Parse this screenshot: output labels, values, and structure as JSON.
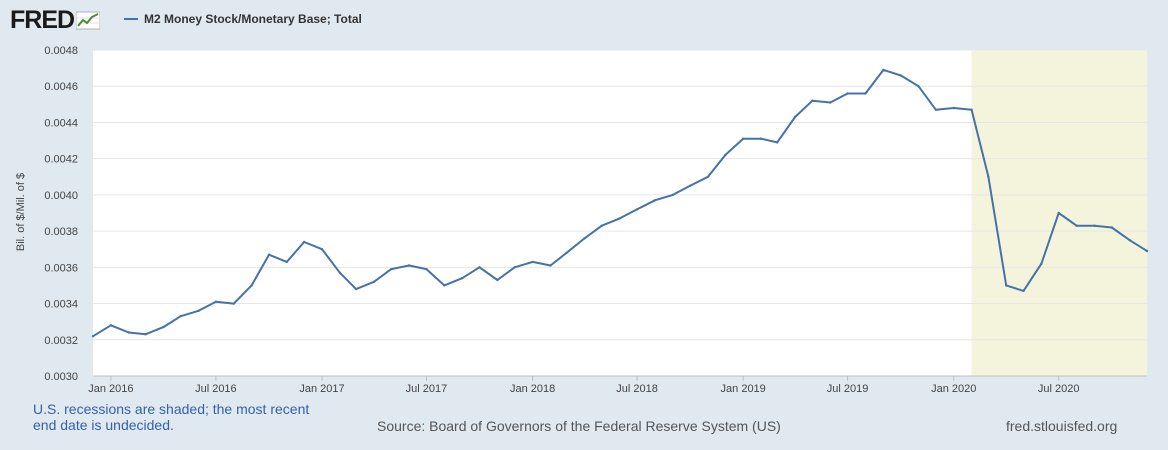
{
  "header": {
    "logo_text": "FRED",
    "logo_graph_icon": "chart-line-icon"
  },
  "legend": {
    "label": "M2 Money Stock/Monetary Base; Total"
  },
  "footer": {
    "recession_note": "U.S. recessions are shaded; the most recent end date is undecided.",
    "source": "Source: Board of Governors of the Federal Reserve System (US)",
    "site": "fred.stlouisfed.org"
  },
  "colors": {
    "line": "#4572a7",
    "recession_shade": "#f4f4dc",
    "background": "#e1e9f0",
    "plot_background": "#ffffff",
    "grid": "#e6e6e6"
  },
  "chart_data": {
    "type": "line",
    "title": "",
    "xlabel": "",
    "ylabel": "Bil. of $/Mil. of $",
    "x_range": [
      "2015-12-01",
      "2020-12-01"
    ],
    "ylim": [
      0.003,
      0.0048
    ],
    "y_ticks": [
      "0.0030",
      "0.0032",
      "0.0034",
      "0.0036",
      "0.0038",
      "0.0040",
      "0.0042",
      "0.0044",
      "0.0046",
      "0.0048"
    ],
    "x_ticks": [
      {
        "date": "2016-01-01",
        "label": "Jan 2016"
      },
      {
        "date": "2016-07-01",
        "label": "Jul 2016"
      },
      {
        "date": "2017-01-01",
        "label": "Jan 2017"
      },
      {
        "date": "2017-07-01",
        "label": "Jul 2017"
      },
      {
        "date": "2018-01-01",
        "label": "Jan 2018"
      },
      {
        "date": "2018-07-01",
        "label": "Jul 2018"
      },
      {
        "date": "2019-01-01",
        "label": "Jan 2019"
      },
      {
        "date": "2019-07-01",
        "label": "Jul 2019"
      },
      {
        "date": "2020-01-01",
        "label": "Jan 2020"
      },
      {
        "date": "2020-07-01",
        "label": "Jul 2020"
      }
    ],
    "grid": true,
    "legend_position": "top-left",
    "recession": {
      "start": "2020-02-01",
      "end": "2020-12-01"
    },
    "series": [
      {
        "name": "M2 Money Stock/Monetary Base; Total",
        "x": [
          "2015-12-01",
          "2016-01-01",
          "2016-02-01",
          "2016-03-01",
          "2016-04-01",
          "2016-05-01",
          "2016-06-01",
          "2016-07-01",
          "2016-08-01",
          "2016-09-01",
          "2016-10-01",
          "2016-11-01",
          "2016-12-01",
          "2017-01-01",
          "2017-02-01",
          "2017-03-01",
          "2017-04-01",
          "2017-05-01",
          "2017-06-01",
          "2017-07-01",
          "2017-08-01",
          "2017-09-01",
          "2017-10-01",
          "2017-11-01",
          "2017-12-01",
          "2018-01-01",
          "2018-02-01",
          "2018-03-01",
          "2018-04-01",
          "2018-05-01",
          "2018-06-01",
          "2018-07-01",
          "2018-08-01",
          "2018-09-01",
          "2018-10-01",
          "2018-11-01",
          "2018-12-01",
          "2019-01-01",
          "2019-02-01",
          "2019-03-01",
          "2019-04-01",
          "2019-05-01",
          "2019-06-01",
          "2019-07-01",
          "2019-08-01",
          "2019-09-01",
          "2019-10-01",
          "2019-11-01",
          "2019-12-01",
          "2020-01-01",
          "2020-02-01",
          "2020-03-01",
          "2020-04-01",
          "2020-05-01",
          "2020-06-01",
          "2020-07-01",
          "2020-08-01",
          "2020-09-01",
          "2020-10-01",
          "2020-11-01",
          "2020-12-01"
        ],
        "values": [
          0.00322,
          0.00328,
          0.00324,
          0.00323,
          0.00327,
          0.00333,
          0.00336,
          0.00341,
          0.0034,
          0.0035,
          0.00367,
          0.00363,
          0.00374,
          0.0037,
          0.00357,
          0.00348,
          0.00352,
          0.00359,
          0.00361,
          0.00359,
          0.0035,
          0.00354,
          0.0036,
          0.00353,
          0.0036,
          0.00363,
          0.00361,
          0.00368,
          0.00376,
          0.00383,
          0.00387,
          0.00392,
          0.00397,
          0.004,
          0.00405,
          0.0041,
          0.00422,
          0.00431,
          0.00431,
          0.00429,
          0.00443,
          0.00452,
          0.00451,
          0.00456,
          0.00456,
          0.00469,
          0.00466,
          0.0046,
          0.00447,
          0.00448,
          0.00447,
          0.0041,
          0.0035,
          0.00347,
          0.00362,
          0.0039,
          0.00383,
          0.00383,
          0.00382,
          0.00375,
          0.00369
        ]
      }
    ]
  }
}
